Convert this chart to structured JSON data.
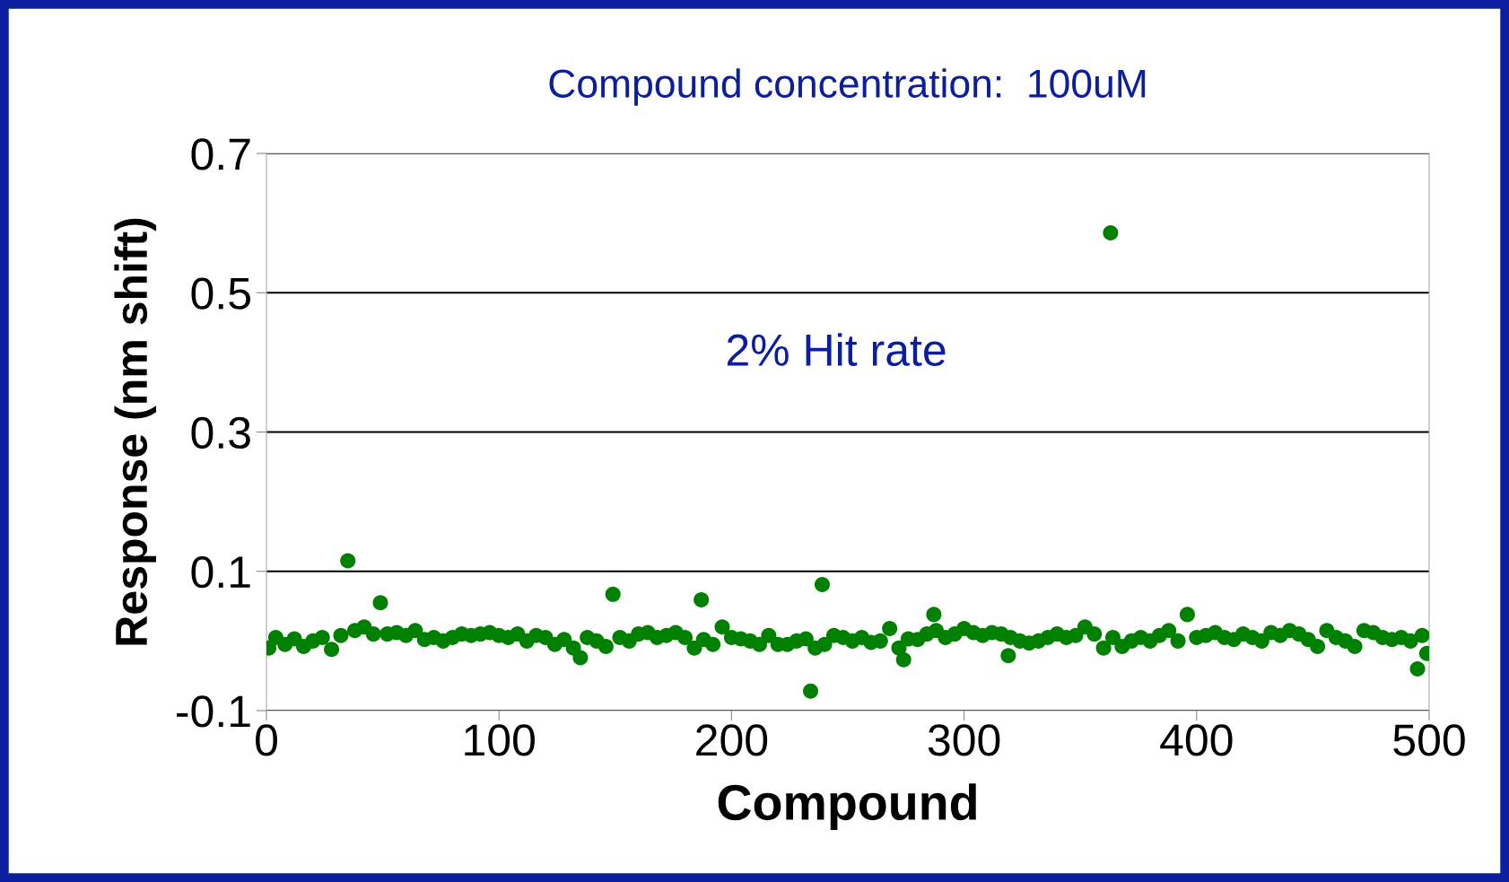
{
  "chart_data": {
    "type": "scatter",
    "title": "Compound concentration:  100uM",
    "xlabel": "Compound",
    "ylabel": "Response (nm shift)",
    "annotations": [
      "2% Hit rate"
    ],
    "series": [
      {
        "color": "#008000",
        "x": [
          1,
          4,
          8,
          12,
          16,
          20,
          24,
          28,
          32,
          35,
          38,
          42,
          46,
          49,
          52,
          56,
          60,
          64,
          68,
          72,
          76,
          80,
          84,
          88,
          92,
          96,
          100,
          104,
          108,
          112,
          116,
          120,
          124,
          128,
          132,
          135,
          138,
          142,
          146,
          149,
          152,
          156,
          160,
          164,
          168,
          172,
          176,
          180,
          184,
          187,
          188,
          192,
          196,
          200,
          204,
          208,
          212,
          216,
          220,
          224,
          228,
          232,
          234,
          236,
          239,
          240,
          244,
          248,
          252,
          256,
          260,
          264,
          268,
          272,
          274,
          276,
          280,
          284,
          287,
          288,
          292,
          296,
          300,
          304,
          308,
          312,
          316,
          319,
          320,
          324,
          328,
          332,
          336,
          340,
          344,
          348,
          352,
          356,
          360,
          363,
          364,
          368,
          372,
          376,
          380,
          384,
          388,
          392,
          396,
          400,
          404,
          408,
          412,
          416,
          420,
          424,
          428,
          432,
          436,
          440,
          444,
          448,
          452,
          456,
          460,
          464,
          468,
          472,
          476,
          480,
          484,
          488,
          492,
          495,
          497,
          499
        ],
        "values": [
          -0.01,
          0.005,
          -0.005,
          0.003,
          -0.008,
          0.0,
          0.005,
          -0.012,
          0.008,
          0.115,
          0.015,
          0.02,
          0.01,
          0.055,
          0.01,
          0.012,
          0.008,
          0.015,
          0.002,
          0.005,
          0.0,
          0.005,
          0.01,
          0.008,
          0.01,
          0.012,
          0.008,
          0.005,
          0.01,
          0.0,
          0.008,
          0.005,
          -0.005,
          0.002,
          -0.01,
          -0.024,
          0.005,
          0.0,
          -0.008,
          0.067,
          0.005,
          0.0,
          0.01,
          0.012,
          0.005,
          0.008,
          0.012,
          0.005,
          -0.01,
          0.059,
          0.002,
          -0.005,
          0.02,
          0.005,
          0.003,
          0.0,
          -0.005,
          0.008,
          -0.005,
          -0.005,
          0.0,
          0.003,
          -0.072,
          -0.01,
          0.081,
          -0.005,
          0.008,
          0.005,
          0.0,
          0.005,
          -0.002,
          0.0,
          0.018,
          -0.01,
          -0.027,
          0.003,
          0.002,
          0.01,
          0.038,
          0.015,
          0.005,
          0.01,
          0.018,
          0.012,
          0.008,
          0.012,
          0.01,
          -0.021,
          0.005,
          0.0,
          -0.003,
          0.0,
          0.005,
          0.01,
          0.005,
          0.008,
          0.02,
          0.01,
          -0.01,
          0.586,
          0.005,
          -0.008,
          0.0,
          0.005,
          0.0,
          0.008,
          0.015,
          0.0,
          0.038,
          0.005,
          0.008,
          0.012,
          0.005,
          0.002,
          0.01,
          0.005,
          0.0,
          0.012,
          0.008,
          0.015,
          0.01,
          0.002,
          -0.008,
          0.015,
          0.005,
          0.0,
          -0.008,
          0.015,
          0.012,
          0.005,
          0.002,
          0.005,
          0.0,
          -0.04,
          0.008,
          -0.018
        ]
      }
    ],
    "xlim": [
      0,
      500
    ],
    "xticks": [
      0,
      100,
      200,
      300,
      400,
      500
    ],
    "ylim": [
      -0.1,
      0.7
    ],
    "yticks": [
      -0.1,
      0.1,
      0.3,
      0.5,
      0.7
    ],
    "grid": "y",
    "marker": "circle"
  }
}
